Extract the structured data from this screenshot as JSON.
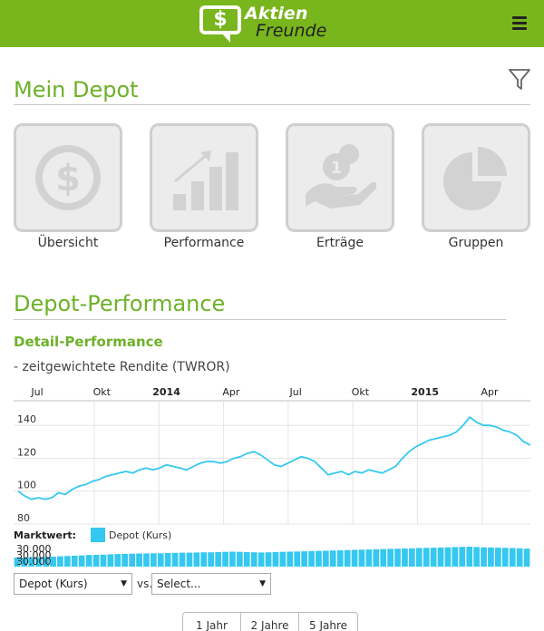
{
  "header": {
    "logo_symbol": "$",
    "logo_line1": "Aktien",
    "logo_line2": "Freunde",
    "menu_icon": "hamburger-icon"
  },
  "depot": {
    "title": "Mein Depot",
    "filter_icon": "filter-icon",
    "tiles": [
      {
        "label": "Übersicht",
        "icon": "dollar-coin-icon"
      },
      {
        "label": "Performance",
        "icon": "bar-chart-trend-icon"
      },
      {
        "label": "Erträge",
        "icon": "hand-coins-icon"
      },
      {
        "label": "Gruppen",
        "icon": "pie-chart-icon"
      }
    ]
  },
  "performance": {
    "title": "Depot-Performance",
    "subtitle": "Detail-Performance",
    "description": "- zeitgewichtete Rendite (TWROR)"
  },
  "chart_data": {
    "type": "line",
    "x_ticks": [
      "Jul",
      "Okt",
      "2014",
      "Apr",
      "Jul",
      "Okt",
      "2015",
      "Apr"
    ],
    "y_ticks": [
      80,
      100,
      120,
      140
    ],
    "ylim": [
      80,
      155
    ],
    "series": [
      {
        "name": "Depot (Kurs)",
        "color": "#35c8f0",
        "values": [
          100,
          97,
          95,
          96,
          95,
          96,
          99,
          98,
          101,
          103,
          104,
          106,
          107,
          109,
          110,
          111,
          112,
          111,
          113,
          114,
          113,
          114,
          116,
          115,
          114,
          113,
          115,
          117,
          118,
          118,
          117,
          118,
          120,
          121,
          123,
          124,
          122,
          119,
          116,
          115,
          117,
          119,
          121,
          120,
          118,
          114,
          110,
          111,
          112,
          110,
          112,
          111,
          113,
          112,
          111,
          113,
          115,
          120,
          124,
          127,
          129,
          131,
          132,
          133,
          134,
          136,
          140,
          145,
          142,
          140,
          140,
          139,
          137,
          136,
          134,
          130,
          128
        ]
      }
    ]
  },
  "marktwert": {
    "label": "Marktwert:",
    "legend_label": "Depot (Kurs)",
    "axis_labels": [
      "30.000",
      "30.000",
      "30.000"
    ],
    "bar_color": "#35c8f0",
    "bar_levels": [
      0.45,
      0.46,
      0.48,
      0.47,
      0.49,
      0.5,
      0.52,
      0.53,
      0.55,
      0.56,
      0.58,
      0.59,
      0.6,
      0.62,
      0.63,
      0.64,
      0.65,
      0.66,
      0.66,
      0.67,
      0.67,
      0.68,
      0.69,
      0.7,
      0.7,
      0.71,
      0.72,
      0.72,
      0.73,
      0.74,
      0.75,
      0.74,
      0.73,
      0.72,
      0.71,
      0.72,
      0.73,
      0.74,
      0.75,
      0.76,
      0.77,
      0.78,
      0.79,
      0.8,
      0.81,
      0.82,
      0.83,
      0.84,
      0.85,
      0.86,
      0.87,
      0.88,
      0.89,
      0.9,
      0.91,
      0.92,
      0.93,
      0.94,
      0.95,
      0.96,
      0.97,
      0.98,
      0.99,
      1.0,
      0.98,
      0.97,
      0.96,
      0.95,
      0.94,
      0.93,
      0.92,
      0.9
    ]
  },
  "controls": {
    "select1": "Depot (Kurs)",
    "vs_label": "vs.",
    "select2": "Select...",
    "periods": [
      "1 Jahr",
      "2 Jahre",
      "5 Jahre"
    ]
  }
}
